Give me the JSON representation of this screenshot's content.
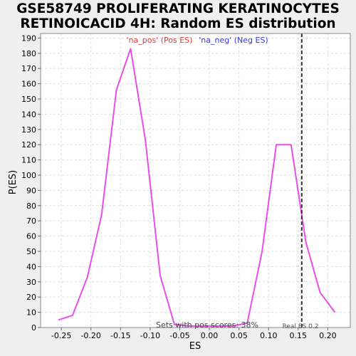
{
  "title_line1": "GSE58749 PROLIFERATING KERATINOCYTES",
  "title_line2": "RETINOICACID 4H: Random ES distribution",
  "chart_data": {
    "type": "line",
    "xlabel": "ES",
    "ylabel": "P(ES)",
    "xlim": [
      -0.285,
      0.238
    ],
    "ylim": [
      0,
      193
    ],
    "x_ticks": [
      -0.25,
      -0.2,
      -0.15,
      -0.1,
      -0.05,
      0.0,
      0.05,
      0.1,
      0.15,
      0.2
    ],
    "x_tick_labels": [
      "-0.25",
      "-0.20",
      "-0.15",
      "-0.10",
      "-0.05",
      "0.00",
      "0.05",
      "0.10",
      "0.15",
      "0.20"
    ],
    "y_ticks": [
      0,
      10,
      20,
      30,
      40,
      50,
      60,
      70,
      80,
      90,
      100,
      110,
      120,
      130,
      140,
      150,
      160,
      170,
      180,
      190
    ],
    "grid": true,
    "legend": [
      {
        "label": "'na_pos' (Pos ES)",
        "color": "#e03a3a"
      },
      {
        "label": "'na_neg' (Neg ES)",
        "color": "#3a3ad6"
      }
    ],
    "series": [
      {
        "color": "#e84ee8",
        "x": [
          -0.255,
          -0.231,
          -0.206,
          -0.182,
          -0.157,
          -0.133,
          -0.108,
          -0.083,
          -0.059,
          -0.034,
          0.015,
          0.04,
          0.064,
          0.089,
          0.113,
          0.138,
          0.163,
          0.187,
          0.212
        ],
        "y": [
          5,
          8,
          33,
          74,
          156,
          183,
          123,
          34,
          2,
          1,
          1,
          1,
          3,
          50,
          120,
          120,
          56,
          23,
          10
        ]
      }
    ],
    "real_es": {
      "value": 0.156,
      "label": "Real ES 0.2"
    },
    "annotation": "Sets with pos scores: 38%"
  }
}
